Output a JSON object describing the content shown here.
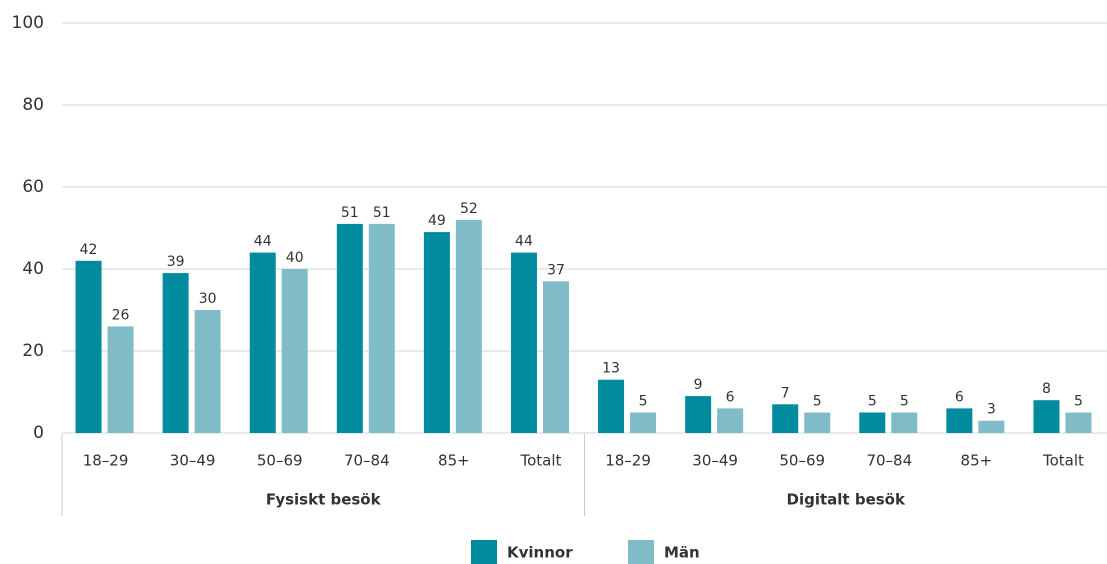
{
  "chart_data": {
    "type": "bar",
    "categories": [
      "18–29",
      "30–49",
      "50–69",
      "70–84",
      "85+",
      "Totalt",
      "18–29",
      "30–49",
      "50–69",
      "70–84",
      "85+",
      "Totalt"
    ],
    "groups": [
      "Fysiskt besök",
      "Digitalt besök"
    ],
    "series": [
      {
        "name": "Kvinnor",
        "color": "#008c9e",
        "values": [
          42,
          39,
          44,
          51,
          49,
          44,
          13,
          9,
          7,
          5,
          6,
          8
        ]
      },
      {
        "name": "Män",
        "color": "#80bcc8",
        "values": [
          26,
          30,
          40,
          51,
          52,
          37,
          5,
          6,
          5,
          5,
          3,
          5
        ]
      }
    ],
    "ylim": [
      0,
      100
    ],
    "yticks": [
      0,
      20,
      40,
      60,
      80,
      100
    ],
    "grid": true,
    "legend": "bottom"
  }
}
